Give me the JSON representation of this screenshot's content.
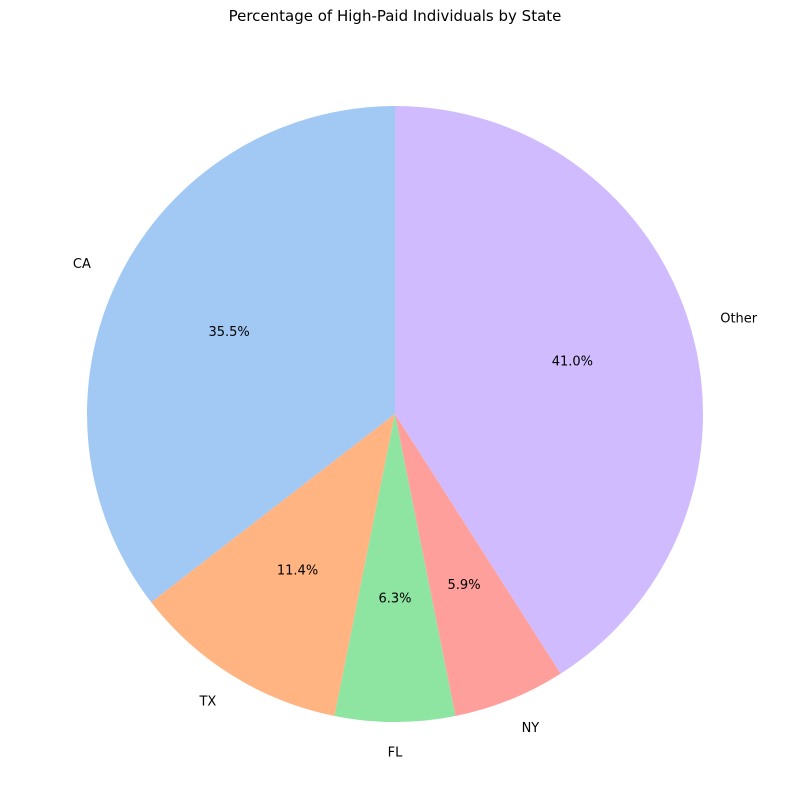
{
  "chart_data": {
    "type": "pie",
    "title": "Percentage of High-Paid Individuals by State",
    "categories": [
      "CA",
      "TX",
      "FL",
      "NY",
      "Other"
    ],
    "values": [
      35.5,
      11.4,
      6.3,
      5.9,
      41.0
    ],
    "value_labels": [
      "35.5%",
      "11.4%",
      "6.3%",
      "5.9%",
      "41.0%"
    ],
    "colors": [
      "#a1c9f4",
      "#ffb482",
      "#8de5a1",
      "#ff9f9b",
      "#d0bbff"
    ],
    "start_angle_deg": 90,
    "direction": "counterclockwise",
    "legend": "none"
  }
}
